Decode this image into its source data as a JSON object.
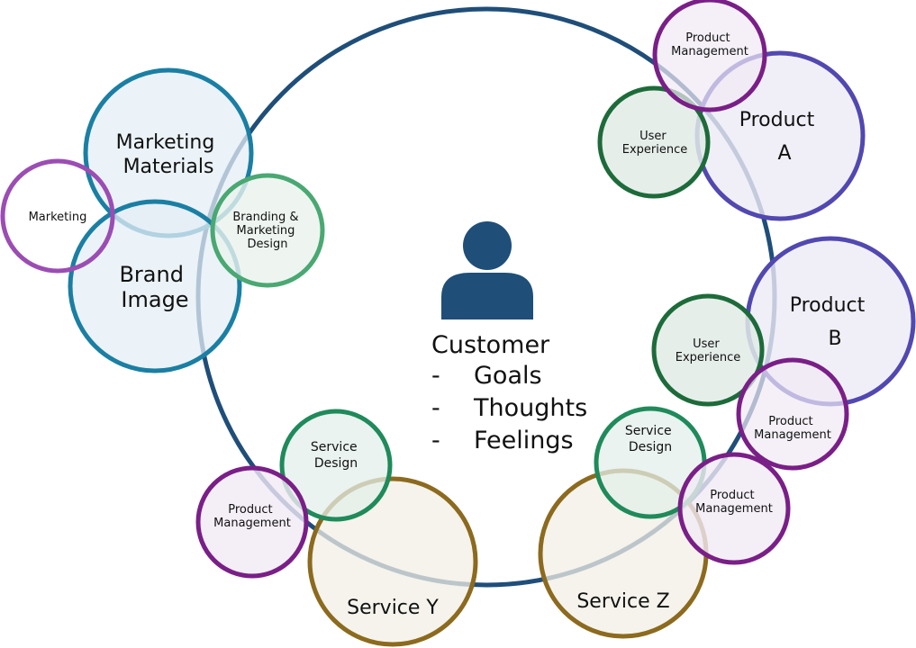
{
  "colors": {
    "main_ring": "#1f4e79",
    "person_icon": "#1f4e79",
    "teal": "#1a7fa3",
    "teal_fill": "#e4eef6",
    "marketing_purple": "#9b4db3",
    "marketing_fill": "#ffffff",
    "mid_green": "#4aa872",
    "mid_green_fill": "#eaf3ec",
    "dark_green": "#1d6b3a",
    "dark_green_fill": "#e2ebe6",
    "service_green": "#1f8a5a",
    "service_green_fill": "#e3efea",
    "deep_purple": "#7a1f87",
    "deep_purple_fill": "#f1eaf5",
    "product_blue": "#5148b0",
    "product_blue_fill": "#ecebf6",
    "gold": "#8c6a1e",
    "gold_fill": "#f2efe6"
  },
  "center": {
    "person_icon": "person-icon",
    "title": "Customer",
    "items": [
      {
        "bullet": "-",
        "text": "Goals"
      },
      {
        "bullet": "-",
        "text": "Thoughts"
      },
      {
        "bullet": "-",
        "text": "Feelings"
      }
    ]
  },
  "nodes": {
    "marketing_materials": {
      "line1": "Marketing",
      "line2": "Materials"
    },
    "brand_image": {
      "line1": "Brand",
      "line2": "Image"
    },
    "marketing": {
      "line1": "Marketing"
    },
    "branding_design": {
      "line1": "Branding &",
      "line2": "Marketing",
      "line3": "Design"
    },
    "product_a": {
      "line1": "Product",
      "line2": "A"
    },
    "product_a_mgmt": {
      "line1": "Product",
      "line2": "Management"
    },
    "product_a_ux": {
      "line1": "User",
      "line2": "Experience"
    },
    "product_b": {
      "line1": "Product",
      "line2": "B"
    },
    "product_b_ux": {
      "line1": "User",
      "line2": "Experience"
    },
    "product_b_mgmt": {
      "line1": "Product",
      "line2": "Management"
    },
    "service_y": {
      "line1": "Service Y"
    },
    "service_y_design": {
      "line1": "Service",
      "line2": "Design"
    },
    "service_y_mgmt": {
      "line1": "Product",
      "line2": "Management"
    },
    "service_z": {
      "line1": "Service Z"
    },
    "service_z_design": {
      "line1": "Service",
      "line2": "Design"
    },
    "service_z_mgmt": {
      "line1": "Product",
      "line2": "Management"
    }
  }
}
